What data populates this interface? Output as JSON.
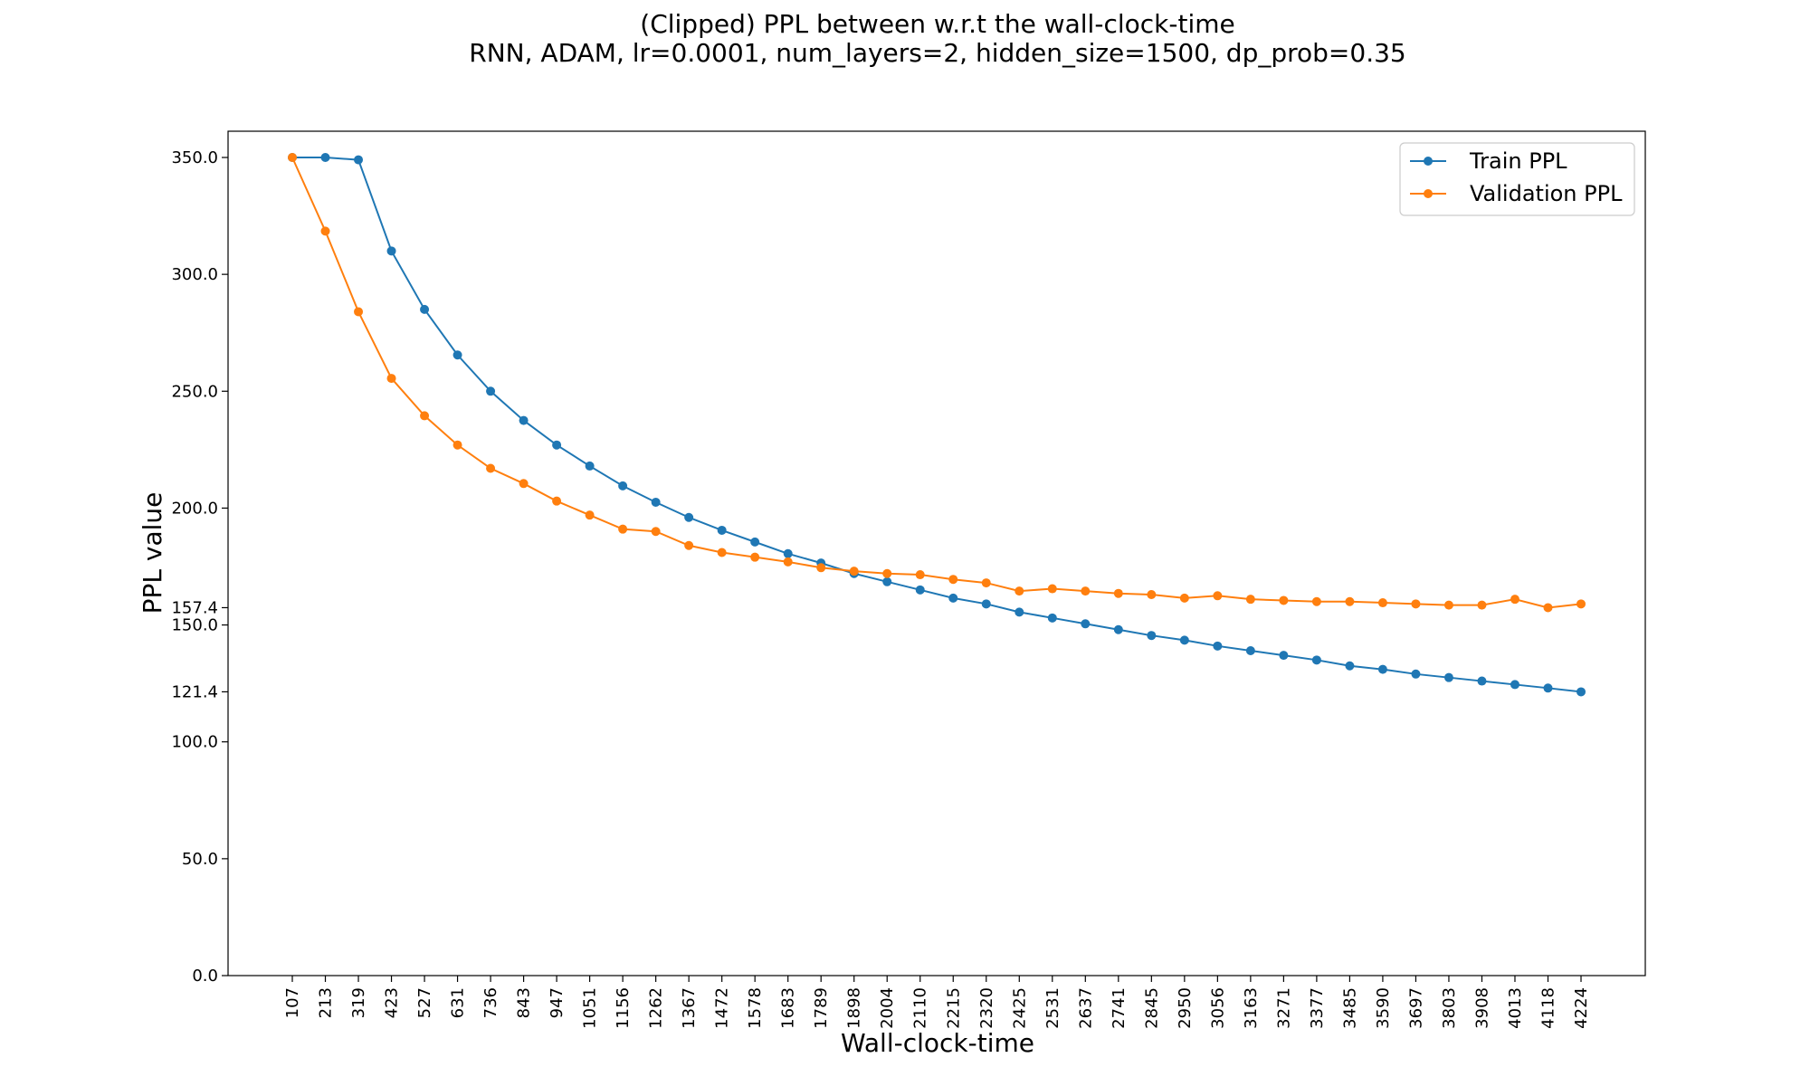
{
  "chart_data": {
    "type": "line",
    "title": "(Clipped) PPL between w.r.t the wall-clock-time",
    "subtitle": "RNN, ADAM, lr=0.0001,  num_layers=2,  hidden_size=1500,  dp_prob=0.35",
    "xlabel": "Wall-clock-time",
    "ylabel": "PPL value",
    "ylim": [
      0,
      350
    ],
    "y_ticks": [
      "0.0",
      "50.0",
      "100.0",
      "121.4",
      "150.0",
      "157.4",
      "200.0",
      "250.0",
      "300.0",
      "350.0"
    ],
    "categories": [
      "107",
      "213",
      "319",
      "423",
      "527",
      "631",
      "736",
      "843",
      "947",
      "1051",
      "1156",
      "1262",
      "1367",
      "1472",
      "1578",
      "1683",
      "1789",
      "1898",
      "2004",
      "2110",
      "2215",
      "2320",
      "2425",
      "2531",
      "2637",
      "2741",
      "2845",
      "2950",
      "3056",
      "3163",
      "3271",
      "3377",
      "3485",
      "3590",
      "3697",
      "3803",
      "3908",
      "4013",
      "4118",
      "4224"
    ],
    "legend_position": "top-right",
    "grid": false,
    "series": [
      {
        "name": "Train PPL",
        "color": "#1f77b4",
        "values": [
          350.0,
          350.0,
          349.0,
          310.0,
          285.0,
          265.5,
          250.0,
          237.5,
          227.0,
          218.0,
          209.5,
          202.5,
          196.0,
          190.5,
          185.5,
          180.5,
          176.5,
          172.0,
          168.5,
          165.0,
          161.5,
          159.0,
          155.5,
          153.0,
          150.5,
          148.0,
          145.5,
          143.5,
          141.0,
          139.0,
          137.0,
          135.0,
          132.5,
          131.0,
          129.0,
          127.5,
          126.0,
          124.5,
          123.0,
          121.4
        ]
      },
      {
        "name": "Validation PPL",
        "color": "#ff7f0e",
        "values": [
          350.0,
          318.5,
          284.0,
          255.5,
          239.5,
          227.0,
          217.0,
          210.5,
          203.0,
          197.0,
          191.0,
          190.0,
          184.0,
          181.0,
          179.0,
          177.0,
          174.5,
          173.0,
          172.0,
          171.5,
          169.5,
          168.0,
          164.5,
          165.5,
          164.5,
          163.5,
          163.0,
          161.5,
          162.5,
          161.0,
          160.5,
          160.0,
          160.0,
          159.5,
          159.0,
          158.5,
          158.5,
          161.0,
          157.4,
          159.0
        ]
      }
    ]
  }
}
